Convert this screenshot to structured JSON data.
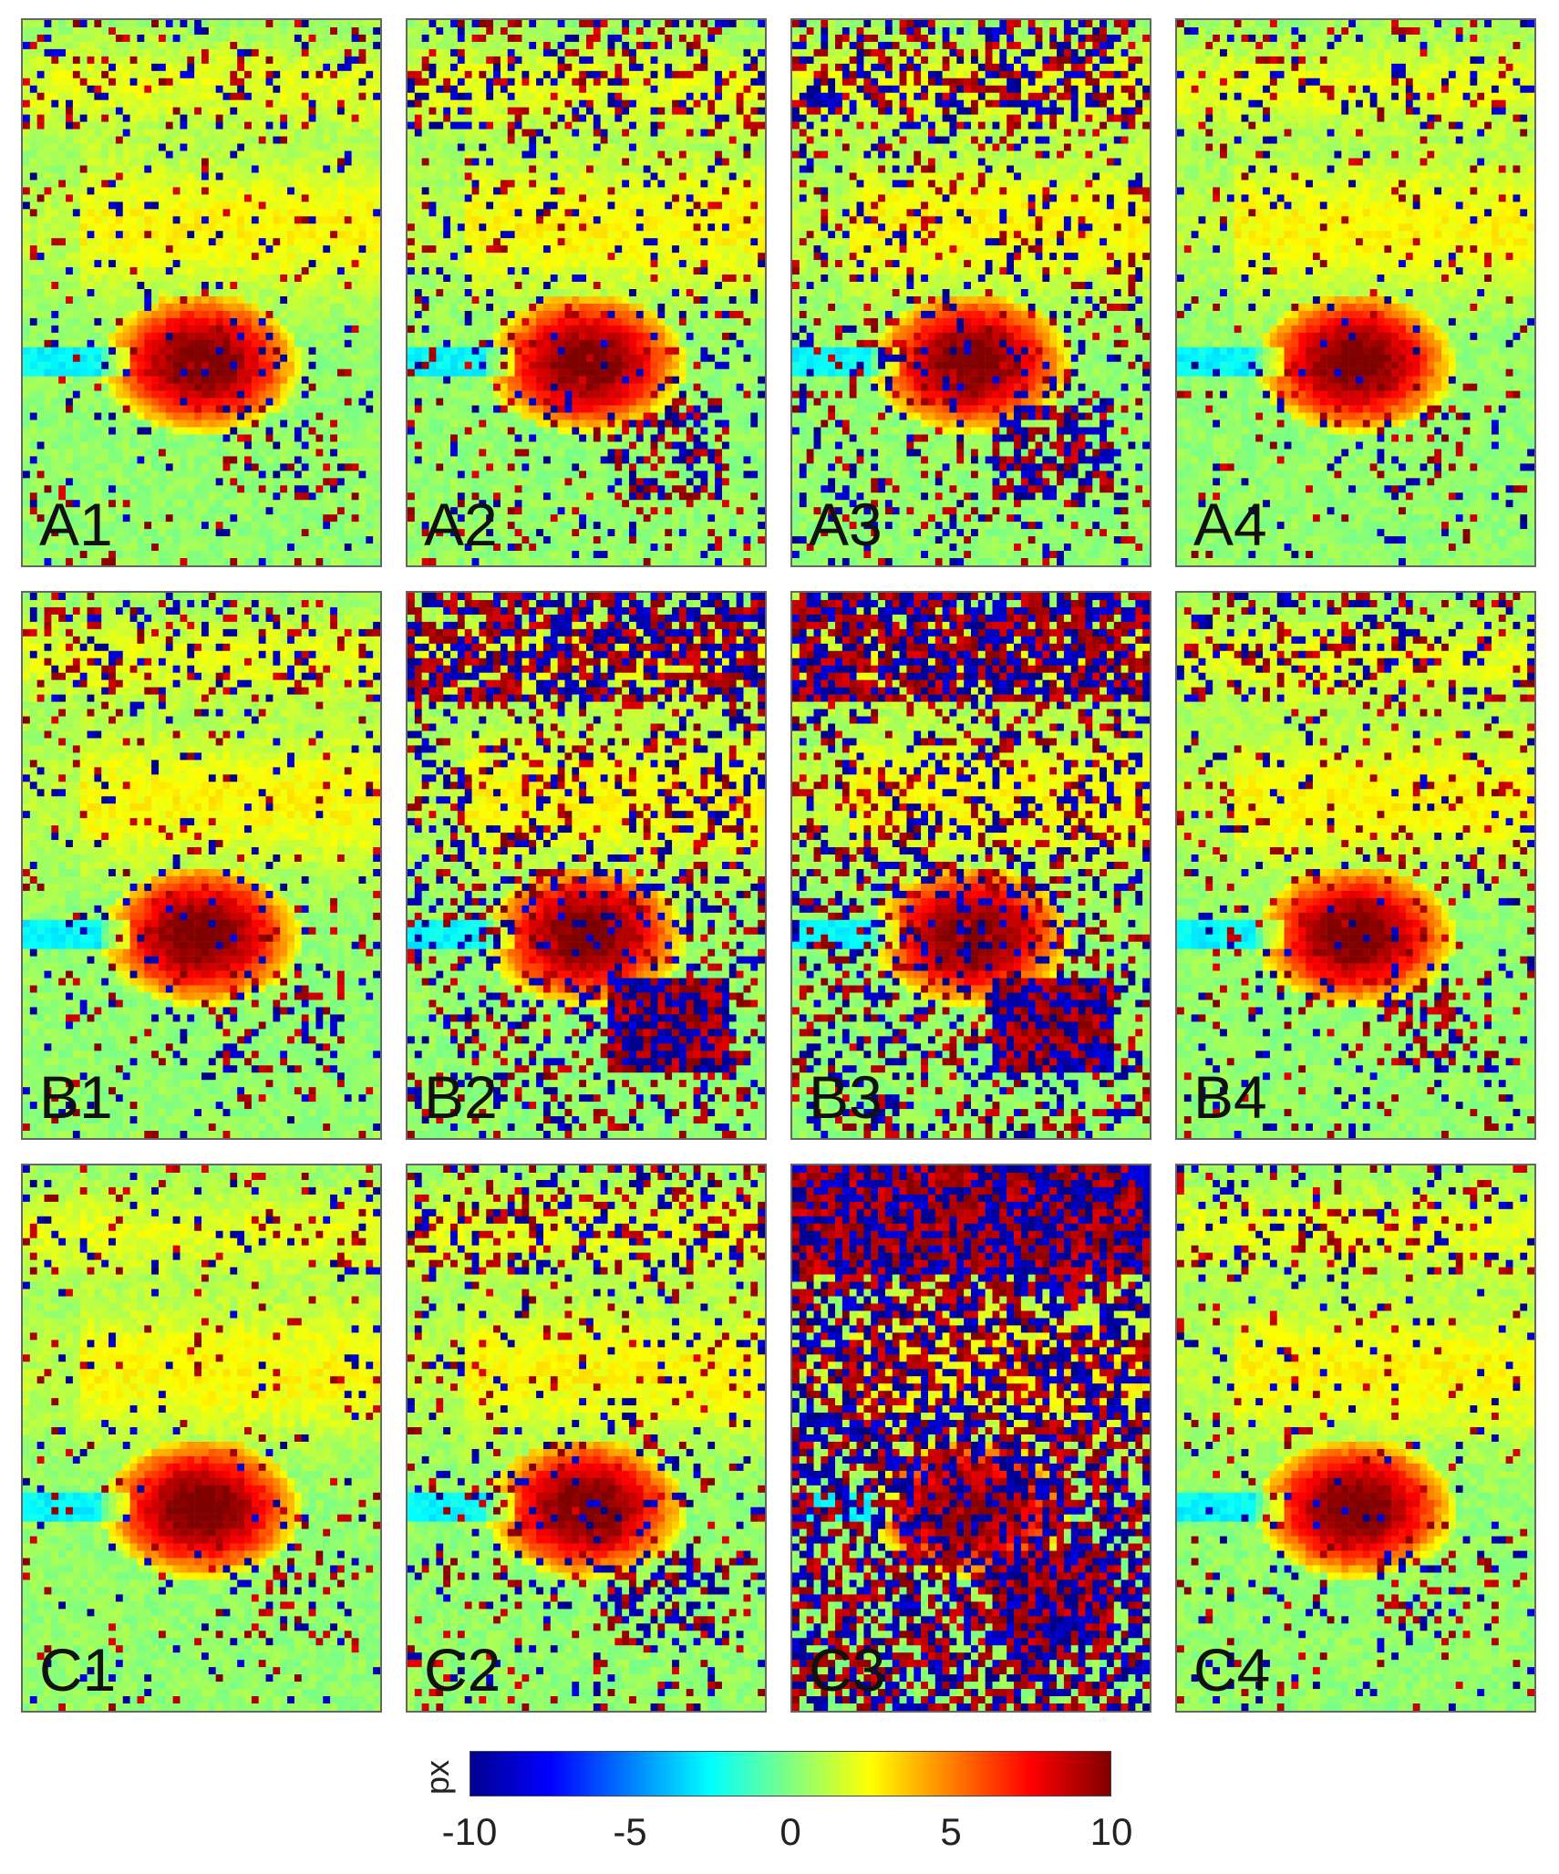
{
  "panels": [
    {
      "id": "A1",
      "label": "A1",
      "noise": 0.08
    },
    {
      "id": "A2",
      "label": "A2",
      "noise": 0.14
    },
    {
      "id": "A3",
      "label": "A3",
      "noise": 0.2
    },
    {
      "id": "A4",
      "label": "A4",
      "noise": 0.07
    },
    {
      "id": "B1",
      "label": "B1",
      "noise": 0.1
    },
    {
      "id": "B2",
      "label": "B2",
      "noise": 0.3
    },
    {
      "id": "B3",
      "label": "B3",
      "noise": 0.35
    },
    {
      "id": "B4",
      "label": "B4",
      "noise": 0.12
    },
    {
      "id": "C1",
      "label": "C1",
      "noise": 0.06
    },
    {
      "id": "C2",
      "label": "C2",
      "noise": 0.14
    },
    {
      "id": "C3",
      "label": "C3",
      "noise": 0.7
    },
    {
      "id": "C4",
      "label": "C4",
      "noise": 0.08
    }
  ],
  "colorbar": {
    "unit": "px",
    "ticks": [
      "-10",
      "-5",
      "0",
      "5",
      "10"
    ],
    "min": -10,
    "max": 10,
    "colors": [
      "#00008f",
      "#0000ff",
      "#0080ff",
      "#00ffff",
      "#80ff80",
      "#ffff00",
      "#ff8000",
      "#ff0000",
      "#800000"
    ]
  }
}
